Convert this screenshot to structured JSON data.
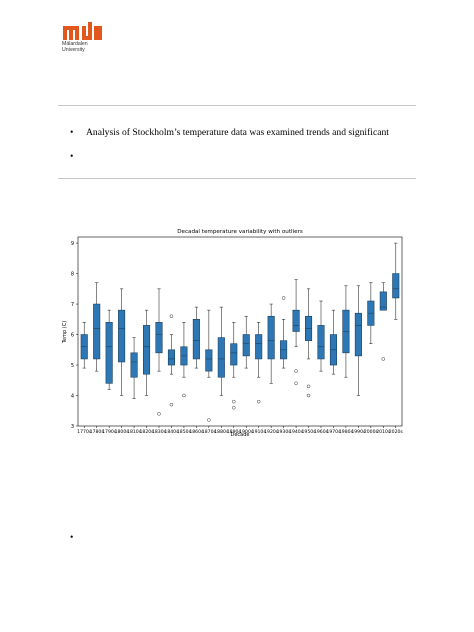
{
  "logo": {
    "mark": "mdh",
    "line1": "Mälardalen",
    "line2": "University",
    "color": "#e2571e"
  },
  "bullets": [
    {
      "symbol": "•",
      "text": "Analysis of Stockholm’s temperature data was examined trends and significant"
    },
    {
      "symbol": "•",
      "text": ""
    },
    {
      "symbol": "•",
      "text": ""
    }
  ],
  "chart_data": {
    "type": "box",
    "title": "Decadal temperature variability with outliers",
    "xlabel": "Decade",
    "ylabel": "Temp (C)",
    "ylim": [
      3,
      9.2
    ],
    "yticks": [
      3,
      4,
      5,
      6,
      7,
      8,
      9
    ],
    "box_color": "#2d78b4",
    "categories": [
      "1770s",
      "1780s",
      "1790s",
      "1800s",
      "1810s",
      "1820s",
      "1830s",
      "1840s",
      "1850s",
      "1860s",
      "1870s",
      "1880s",
      "1890s",
      "1900s",
      "1910s",
      "1920s",
      "1930s",
      "1940s",
      "1950s",
      "1960s",
      "1970s",
      "1980s",
      "1990s",
      "2000s",
      "2010s",
      "2020s"
    ],
    "boxes": [
      {
        "min": 4.9,
        "q1": 5.2,
        "median": 5.6,
        "q3": 6.0,
        "max": 6.4,
        "outliers": []
      },
      {
        "min": 4.8,
        "q1": 5.2,
        "median": 6.2,
        "q3": 7.0,
        "max": 7.7,
        "outliers": []
      },
      {
        "min": 4.2,
        "q1": 4.4,
        "median": 5.6,
        "q3": 6.4,
        "max": 6.8,
        "outliers": []
      },
      {
        "min": 4.0,
        "q1": 5.1,
        "median": 6.2,
        "q3": 6.8,
        "max": 7.5,
        "outliers": []
      },
      {
        "min": 3.9,
        "q1": 4.6,
        "median": 5.1,
        "q3": 5.4,
        "max": 5.9,
        "outliers": []
      },
      {
        "min": 4.0,
        "q1": 4.7,
        "median": 5.6,
        "q3": 6.3,
        "max": 6.8,
        "outliers": []
      },
      {
        "min": 4.8,
        "q1": 5.4,
        "median": 6.0,
        "q3": 6.4,
        "max": 7.5,
        "outliers": [
          3.4
        ]
      },
      {
        "min": 4.7,
        "q1": 5.0,
        "median": 5.2,
        "q3": 5.5,
        "max": 6.0,
        "outliers": [
          6.6,
          3.7
        ]
      },
      {
        "min": 4.6,
        "q1": 5.0,
        "median": 5.3,
        "q3": 5.6,
        "max": 6.4,
        "outliers": [
          4.0
        ]
      },
      {
        "min": 4.9,
        "q1": 5.2,
        "median": 5.8,
        "q3": 6.5,
        "max": 6.9,
        "outliers": []
      },
      {
        "min": 4.6,
        "q1": 4.8,
        "median": 5.2,
        "q3": 5.5,
        "max": 6.8,
        "outliers": [
          3.2
        ]
      },
      {
        "min": 4.0,
        "q1": 4.6,
        "median": 5.2,
        "q3": 5.9,
        "max": 6.9,
        "outliers": []
      },
      {
        "min": 4.6,
        "q1": 5.0,
        "median": 5.4,
        "q3": 5.7,
        "max": 6.4,
        "outliers": [
          3.8,
          3.6
        ]
      },
      {
        "min": 4.9,
        "q1": 5.3,
        "median": 5.7,
        "q3": 6.0,
        "max": 6.6,
        "outliers": []
      },
      {
        "min": 4.6,
        "q1": 5.2,
        "median": 5.7,
        "q3": 6.0,
        "max": 6.4,
        "outliers": [
          3.8
        ]
      },
      {
        "min": 4.4,
        "q1": 5.2,
        "median": 5.8,
        "q3": 6.6,
        "max": 7.0,
        "outliers": []
      },
      {
        "min": 4.9,
        "q1": 5.2,
        "median": 5.5,
        "q3": 5.8,
        "max": 6.5,
        "outliers": [
          7.2
        ]
      },
      {
        "min": 5.6,
        "q1": 6.1,
        "median": 6.3,
        "q3": 6.8,
        "max": 7.8,
        "outliers": [
          4.8,
          4.4
        ]
      },
      {
        "min": 5.2,
        "q1": 5.8,
        "median": 6.2,
        "q3": 6.6,
        "max": 7.5,
        "outliers": [
          4.3,
          4.0
        ]
      },
      {
        "min": 4.8,
        "q1": 5.2,
        "median": 5.6,
        "q3": 6.3,
        "max": 7.1,
        "outliers": []
      },
      {
        "min": 4.7,
        "q1": 5.0,
        "median": 5.5,
        "q3": 6.0,
        "max": 6.8,
        "outliers": []
      },
      {
        "min": 4.6,
        "q1": 5.4,
        "median": 6.1,
        "q3": 6.8,
        "max": 7.6,
        "outliers": []
      },
      {
        "min": 4.0,
        "q1": 5.3,
        "median": 6.3,
        "q3": 6.7,
        "max": 7.6,
        "outliers": []
      },
      {
        "min": 5.7,
        "q1": 6.3,
        "median": 6.7,
        "q3": 7.1,
        "max": 7.7,
        "outliers": []
      },
      {
        "min": 6.8,
        "q1": 6.8,
        "median": 6.9,
        "q3": 7.4,
        "max": 7.7,
        "outliers": [
          5.2
        ]
      },
      {
        "min": 6.5,
        "q1": 7.2,
        "median": 7.5,
        "q3": 8.0,
        "max": 9.0,
        "outliers": []
      }
    ]
  }
}
